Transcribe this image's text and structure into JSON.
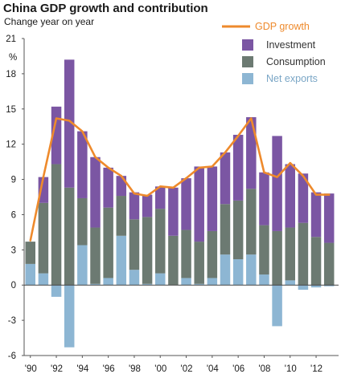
{
  "chart_data": {
    "type": "bar",
    "title": "China GDP growth and contribution",
    "subtitle": "Change year on year",
    "ylabel": "%",
    "ylim": [
      -6,
      21
    ],
    "yticks": [
      -6,
      -3,
      0,
      3,
      6,
      9,
      12,
      15,
      18,
      21
    ],
    "years": [
      1990,
      1991,
      1992,
      1993,
      1994,
      1995,
      1996,
      1997,
      1998,
      1999,
      2000,
      2001,
      2002,
      2003,
      2004,
      2005,
      2006,
      2007,
      2008,
      2009,
      2010,
      2011,
      2012,
      2013
    ],
    "xtick_labels": [
      "'90",
      "'92",
      "'94",
      "'96",
      "'98",
      "'00",
      "'02",
      "'04",
      "'06",
      "'08",
      "'10",
      "'12"
    ],
    "legend_position": "top-right",
    "series": [
      {
        "name": "Net exports",
        "color": "#8db6d3",
        "values": [
          1.8,
          1.0,
          -1.0,
          -5.3,
          3.4,
          0.1,
          0.6,
          4.2,
          1.3,
          0.1,
          1.0,
          0.0,
          0.6,
          0.1,
          0.6,
          2.6,
          2.2,
          2.6,
          0.9,
          -3.5,
          0.4,
          -0.4,
          -0.2,
          -0.1
        ]
      },
      {
        "name": "Consumption",
        "color": "#6c7a72",
        "values": [
          1.9,
          6.0,
          10.3,
          8.3,
          4.0,
          4.8,
          6.0,
          3.4,
          4.3,
          5.7,
          5.5,
          4.2,
          4.1,
          3.6,
          4.0,
          4.3,
          5.0,
          5.6,
          4.2,
          4.6,
          4.5,
          5.3,
          4.1,
          3.6
        ]
      },
      {
        "name": "Investment",
        "color": "#7b56a3",
        "values": [
          0.0,
          2.2,
          4.9,
          10.9,
          5.7,
          6.0,
          3.4,
          1.7,
          2.3,
          1.9,
          1.9,
          4.1,
          4.4,
          6.4,
          5.5,
          4.4,
          5.6,
          6.1,
          4.5,
          8.1,
          5.4,
          4.2,
          3.8,
          4.2
        ]
      },
      {
        "name": "GDP growth",
        "color": "#ee8a2c",
        "type": "line",
        "values": [
          3.8,
          9.2,
          14.2,
          14.0,
          13.1,
          10.9,
          10.0,
          9.3,
          7.8,
          7.6,
          8.4,
          8.3,
          9.1,
          10.0,
          10.1,
          11.3,
          12.7,
          14.2,
          9.6,
          9.2,
          10.4,
          9.3,
          7.7,
          7.7
        ]
      }
    ],
    "legend_order": [
      "GDP growth",
      "Investment",
      "Consumption",
      "Net exports"
    ]
  }
}
